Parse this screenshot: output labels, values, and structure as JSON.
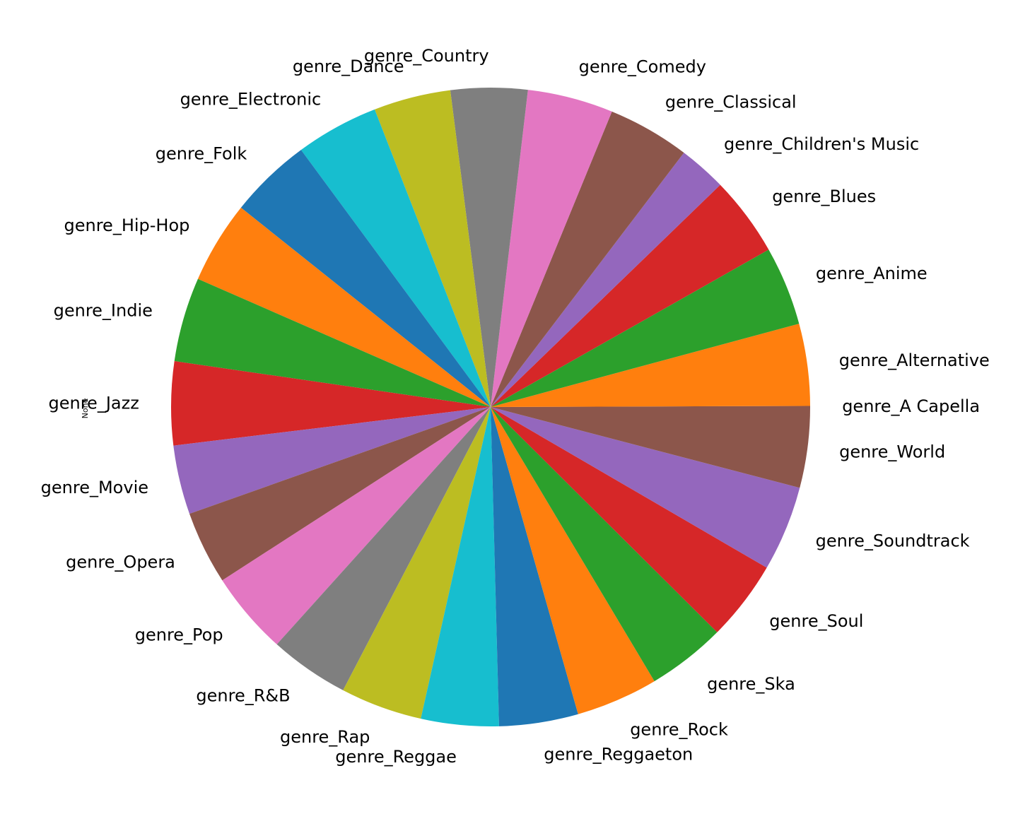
{
  "chart_data": {
    "type": "pie",
    "ylabel": "None",
    "start_angle_deg": 0,
    "direction": "counterclockwise",
    "slices": [
      {
        "label": "genre_A Capella",
        "value": 119,
        "color": "#8c564b"
      },
      {
        "label": "genre_Alternative",
        "value": 9263,
        "color": "#ff7f0e"
      },
      {
        "label": "genre_Anime",
        "value": 8936,
        "color": "#2ca02c"
      },
      {
        "label": "genre_Blues",
        "value": 9023,
        "color": "#d62728"
      },
      {
        "label": "genre_Children's Music",
        "value": 5403,
        "color": "#9467bd"
      },
      {
        "label": "genre_Classical",
        "value": 9256,
        "color": "#8c564b"
      },
      {
        "label": "genre_Comedy",
        "value": 9681,
        "color": "#e377c2"
      },
      {
        "label": "genre_Country",
        "value": 8664,
        "color": "#7f7f7f"
      },
      {
        "label": "genre_Dance",
        "value": 8701,
        "color": "#bcbd22"
      },
      {
        "label": "genre_Electronic",
        "value": 9377,
        "color": "#17becf"
      },
      {
        "label": "genre_Folk",
        "value": 9299,
        "color": "#1f77b4"
      },
      {
        "label": "genre_Hip-Hop",
        "value": 9295,
        "color": "#ff7f0e"
      },
      {
        "label": "genre_Indie",
        "value": 9543,
        "color": "#2ca02c"
      },
      {
        "label": "genre_Jazz",
        "value": 9441,
        "color": "#d62728"
      },
      {
        "label": "genre_Movie",
        "value": 7806,
        "color": "#9467bd"
      },
      {
        "label": "genre_Opera",
        "value": 8280,
        "color": "#8c564b"
      },
      {
        "label": "genre_Pop",
        "value": 9386,
        "color": "#e377c2"
      },
      {
        "label": "genre_R&B",
        "value": 8992,
        "color": "#7f7f7f"
      },
      {
        "label": "genre_Rap",
        "value": 9232,
        "color": "#bcbd22"
      },
      {
        "label": "genre_Reggae",
        "value": 8771,
        "color": "#17becf"
      },
      {
        "label": "genre_Reggaeton",
        "value": 8927,
        "color": "#1f77b4"
      },
      {
        "label": "genre_Rock",
        "value": 9272,
        "color": "#ff7f0e"
      },
      {
        "label": "genre_Ska",
        "value": 8874,
        "color": "#2ca02c"
      },
      {
        "label": "genre_Soul",
        "value": 9089,
        "color": "#d62728"
      },
      {
        "label": "genre_Soundtrack",
        "value": 9646,
        "color": "#9467bd"
      },
      {
        "label": "genre_World",
        "value": 9096,
        "color": "#8c564b"
      }
    ]
  }
}
